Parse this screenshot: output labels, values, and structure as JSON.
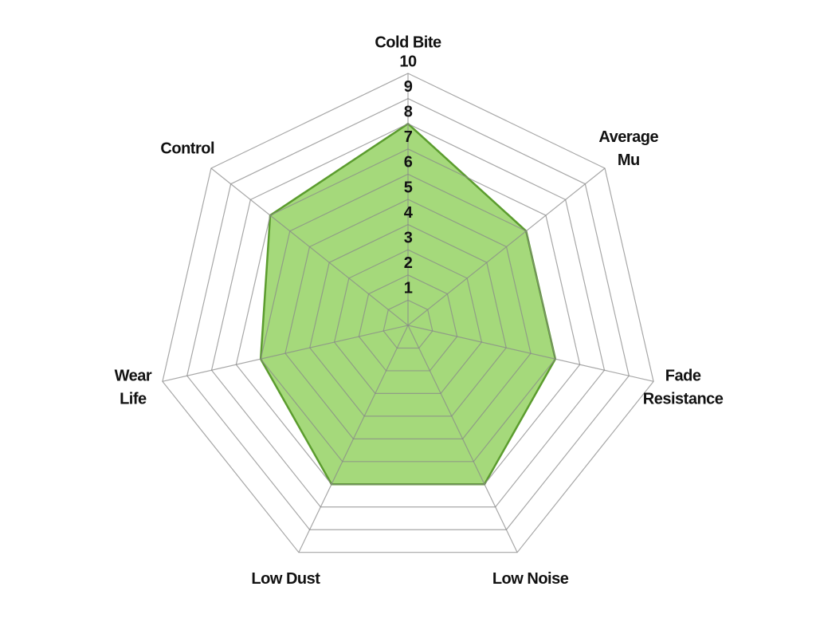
{
  "chart_data": {
    "type": "radar",
    "categories": [
      [
        "Cold Bite"
      ],
      [
        "Average",
        "Mu"
      ],
      [
        "Fade",
        "Resistance"
      ],
      [
        "Low Noise"
      ],
      [
        "Low Dust"
      ],
      [
        "Wear",
        "Life"
      ],
      [
        "Control"
      ]
    ],
    "series": [
      {
        "color": "#8fd05a",
        "edge_color": "#5b9c2e",
        "values": [
          8,
          6,
          6,
          7,
          7,
          6,
          7
        ]
      }
    ],
    "rlim": [
      0,
      10
    ],
    "rticks": [
      1,
      2,
      3,
      4,
      5,
      6,
      7,
      8,
      9,
      10
    ],
    "grid": true
  }
}
